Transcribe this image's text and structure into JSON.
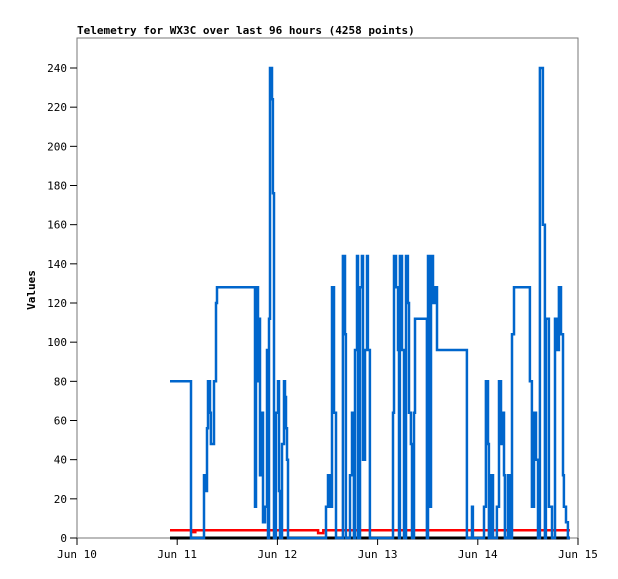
{
  "chart_data": {
    "type": "line",
    "title": "Telemetry for WX3C over last 96 hours (4258 points)",
    "xlabel": "",
    "ylabel": "Values",
    "ylim": [
      0,
      255
    ],
    "xlim": [
      "06-10 00:00",
      "06-15 00:00"
    ],
    "y_ticks": [
      0,
      20,
      40,
      60,
      80,
      100,
      120,
      140,
      160,
      180,
      200,
      220,
      240
    ],
    "x_ticks": [
      {
        "at": "06-10 00:00",
        "label": "Jun 10"
      },
      {
        "at": "06-11 00:00",
        "label": "Jun 11"
      },
      {
        "at": "06-12 00:00",
        "label": "Jun 12"
      },
      {
        "at": "06-13 00:00",
        "label": "Jun 13"
      },
      {
        "at": "06-14 00:00",
        "label": "Jun 14"
      },
      {
        "at": "06-15 00:00",
        "label": "Jun 15"
      }
    ],
    "grid": false,
    "step": true,
    "series": [
      {
        "color": "#000000",
        "points": [
          [
            "06-10 22:16",
            0
          ],
          [
            "06-14 22:04",
            0
          ]
        ]
      },
      {
        "color": "#ff0000",
        "points": [
          [
            "06-10 22:16",
            4
          ],
          [
            "06-11 03:50",
            3
          ],
          [
            "06-11 04:20",
            4
          ],
          [
            "06-12 09:45",
            2.5
          ],
          [
            "06-12 11:00",
            4
          ],
          [
            "06-14 22:04",
            4
          ]
        ]
      },
      {
        "color": "#0066cc",
        "points": [
          [
            "06-10 22:16",
            80
          ],
          [
            "06-11 03:18",
            0
          ],
          [
            "06-11 06:25",
            32
          ],
          [
            "06-11 06:39",
            24
          ],
          [
            "06-11 07:08",
            56
          ],
          [
            "06-11 07:22",
            80
          ],
          [
            "06-11 07:51",
            64
          ],
          [
            "06-11 08:05",
            48
          ],
          [
            "06-11 08:49",
            80
          ],
          [
            "06-11 09:17",
            120
          ],
          [
            "06-11 09:32",
            128
          ],
          [
            "06-11 18:38",
            16
          ],
          [
            "06-11 18:52",
            128
          ],
          [
            "06-11 19:21",
            80
          ],
          [
            "06-11 19:35",
            112
          ],
          [
            "06-11 19:50",
            32
          ],
          [
            "06-11 20:18",
            64
          ],
          [
            "06-11 20:33",
            8
          ],
          [
            "06-11 21:02",
            16
          ],
          [
            "06-11 21:30",
            96
          ],
          [
            "06-11 21:45",
            0
          ],
          [
            "06-11 21:59",
            112
          ],
          [
            "06-11 22:13",
            240
          ],
          [
            "06-11 22:42",
            224
          ],
          [
            "06-11 22:56",
            176
          ],
          [
            "06-11 23:11",
            0
          ],
          [
            "06-11 23:39",
            64
          ],
          [
            "06-12 00:08",
            80
          ],
          [
            "06-12 00:23",
            24
          ],
          [
            "06-12 00:37",
            0
          ],
          [
            "06-12 01:06",
            48
          ],
          [
            "06-12 01:35",
            80
          ],
          [
            "06-12 01:49",
            72
          ],
          [
            "06-12 02:03",
            56
          ],
          [
            "06-12 02:18",
            40
          ],
          [
            "06-12 02:32",
            0
          ],
          [
            "06-12 11:38",
            16
          ],
          [
            "06-12 12:07",
            32
          ],
          [
            "06-12 12:35",
            16
          ],
          [
            "06-12 13:04",
            128
          ],
          [
            "06-12 13:33",
            64
          ],
          [
            "06-12 14:02",
            0
          ],
          [
            "06-12 15:42",
            144
          ],
          [
            "06-12 16:11",
            104
          ],
          [
            "06-12 16:25",
            0
          ],
          [
            "06-12 17:23",
            32
          ],
          [
            "06-12 17:52",
            64
          ],
          [
            "06-12 18:20",
            0
          ],
          [
            "06-12 18:35",
            96
          ],
          [
            "06-12 19:04",
            144
          ],
          [
            "06-12 19:18",
            0
          ],
          [
            "06-12 19:47",
            128
          ],
          [
            "06-12 20:15",
            144
          ],
          [
            "06-12 20:30",
            40
          ],
          [
            "06-12 20:59",
            96
          ],
          [
            "06-12 21:27",
            144
          ],
          [
            "06-12 21:41",
            96
          ],
          [
            "06-12 22:10",
            0
          ],
          [
            "06-13 03:41",
            64
          ],
          [
            "06-13 03:55",
            144
          ],
          [
            "06-13 04:24",
            128
          ],
          [
            "06-13 04:53",
            96
          ],
          [
            "06-13 05:07",
            0
          ],
          [
            "06-13 05:21",
            144
          ],
          [
            "06-13 05:50",
            96
          ],
          [
            "06-13 06:19",
            0
          ],
          [
            "06-13 06:48",
            144
          ],
          [
            "06-13 07:16",
            120
          ],
          [
            "06-13 07:31",
            64
          ],
          [
            "06-13 07:59",
            48
          ],
          [
            "06-13 08:14",
            0
          ],
          [
            "06-13 08:43",
            64
          ],
          [
            "06-13 08:57",
            112
          ],
          [
            "06-13 11:35",
            112
          ],
          [
            "06-13 11:49",
            0
          ],
          [
            "06-13 12:04",
            144
          ],
          [
            "06-13 12:33",
            16
          ],
          [
            "06-13 12:47",
            144
          ],
          [
            "06-13 13:16",
            120
          ],
          [
            "06-13 13:44",
            128
          ],
          [
            "06-13 14:13",
            96
          ],
          [
            "06-13 21:24",
            0
          ],
          [
            "06-13 22:36",
            16
          ],
          [
            "06-13 22:50",
            0
          ],
          [
            "06-14 01:29",
            16
          ],
          [
            "06-14 01:57",
            80
          ],
          [
            "06-14 02:26",
            48
          ],
          [
            "06-14 02:40",
            0
          ],
          [
            "06-14 03:09",
            32
          ],
          [
            "06-14 03:38",
            0
          ],
          [
            "06-14 04:35",
            16
          ],
          [
            "06-14 05:04",
            80
          ],
          [
            "06-14 05:33",
            48
          ],
          [
            "06-14 06:02",
            64
          ],
          [
            "06-14 06:16",
            32
          ],
          [
            "06-14 06:30",
            0
          ],
          [
            "06-14 07:13",
            32
          ],
          [
            "06-14 07:42",
            0
          ],
          [
            "06-14 08:11",
            104
          ],
          [
            "06-14 08:40",
            128
          ],
          [
            "06-14 12:29",
            80
          ],
          [
            "06-14 12:58",
            16
          ],
          [
            "06-14 13:27",
            64
          ],
          [
            "06-14 13:56",
            40
          ],
          [
            "06-14 14:25",
            0
          ],
          [
            "06-14 14:53",
            240
          ],
          [
            "06-14 15:36",
            160
          ],
          [
            "06-14 16:05",
            0
          ],
          [
            "06-14 16:19",
            112
          ],
          [
            "06-14 17:02",
            16
          ],
          [
            "06-14 17:46",
            0
          ],
          [
            "06-14 18:29",
            112
          ],
          [
            "06-14 18:58",
            96
          ],
          [
            "06-14 19:26",
            128
          ],
          [
            "06-14 19:55",
            104
          ],
          [
            "06-14 20:24",
            32
          ],
          [
            "06-14 20:38",
            16
          ],
          [
            "06-14 21:07",
            8
          ],
          [
            "06-14 21:35",
            0
          ],
          [
            "06-14 22:04",
            0
          ]
        ]
      }
    ]
  }
}
